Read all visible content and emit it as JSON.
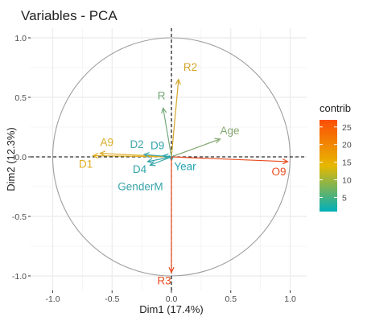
{
  "chart_data": {
    "type": "scatter",
    "title": "Variables - PCA",
    "xlabel": "Dim1 (17.4%)",
    "ylabel": "Dim2 (12.3%)",
    "xlim": [
      -1.0,
      1.0
    ],
    "ylim": [
      -1.0,
      1.0
    ],
    "xticks": [
      -1.0,
      -0.5,
      0.0,
      0.5,
      1.0
    ],
    "yticks": [
      -1.0,
      -0.5,
      0.0,
      0.5,
      1.0
    ],
    "xtick_labels": [
      "-1.0",
      "-0.5",
      "0.0",
      "0.5",
      "1.0"
    ],
    "ytick_labels": [
      "-1.0",
      "-0.5",
      "0.0",
      "0.5",
      "1.0"
    ],
    "grid": true,
    "correlation_circle": true,
    "variables": [
      {
        "name": "R2",
        "x": 0.06,
        "y": 0.65,
        "contrib": 18,
        "color": "#d4a52a"
      },
      {
        "name": "R",
        "x": -0.07,
        "y": 0.41,
        "contrib": 8,
        "color": "#76a87a"
      },
      {
        "name": "Age",
        "x": 0.41,
        "y": 0.15,
        "contrib": 7,
        "color": "#86a872"
      },
      {
        "name": "A9",
        "x": -0.6,
        "y": 0.03,
        "contrib": 18,
        "color": "#d9aa22"
      },
      {
        "name": "D1",
        "x": -0.66,
        "y": 0.01,
        "contrib": 20,
        "color": "#e1ad1e"
      },
      {
        "name": "D2",
        "x": -0.23,
        "y": 0.02,
        "contrib": 3,
        "color": "#3fa6a9"
      },
      {
        "name": "D9",
        "x": -0.07,
        "y": 0.01,
        "contrib": 2,
        "color": "#2fa4ad"
      },
      {
        "name": "D4",
        "x": -0.2,
        "y": -0.04,
        "contrib": 3,
        "color": "#34a4ab"
      },
      {
        "name": "GenderM",
        "x": -0.18,
        "y": -0.07,
        "contrib": 3,
        "color": "#3aa6aa"
      },
      {
        "name": "Year",
        "x": 0.0,
        "y": -0.03,
        "contrib": 1,
        "color": "#25a4b2"
      },
      {
        "name": "O9",
        "x": 0.98,
        "y": -0.04,
        "contrib": 26,
        "color": "#ea4a1d"
      },
      {
        "name": "R3",
        "x": 0.0,
        "y": -0.97,
        "contrib": 26,
        "color": "#ea4a1d"
      }
    ],
    "legend": {
      "title": "contrib",
      "placement": "right",
      "range": [
        1,
        27
      ],
      "ticks": [
        5,
        10,
        15,
        20,
        25
      ],
      "tick_labels": [
        "5",
        "10",
        "15",
        "20",
        "25"
      ],
      "colors": [
        "#00afbb",
        "#e7b800",
        "#fc4e07"
      ]
    }
  }
}
